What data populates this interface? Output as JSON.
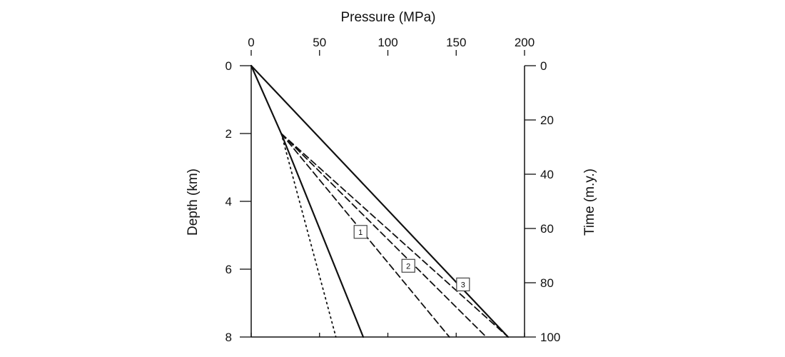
{
  "chart_data": {
    "type": "line",
    "title": "",
    "x_axis": {
      "label": "Pressure (MPa)",
      "position": "top",
      "range": [
        0,
        200
      ],
      "ticks": [
        0,
        50,
        100,
        150,
        200
      ]
    },
    "y_axis_left": {
      "label": "Depth (km)",
      "range": [
        0,
        8
      ],
      "inverted": true,
      "ticks": [
        0,
        2,
        4,
        6,
        8
      ]
    },
    "y_axis_right": {
      "label": "Time (m.y.)",
      "range": [
        0,
        100
      ],
      "inverted": true,
      "ticks": [
        0,
        20,
        40,
        60,
        80,
        100
      ]
    },
    "grid": false,
    "legend": "none",
    "series": [
      {
        "style": "solid",
        "points": [
          [
            0,
            0
          ],
          [
            188,
            8
          ]
        ]
      },
      {
        "style": "solid",
        "points": [
          [
            0,
            0
          ],
          [
            22,
            2
          ],
          [
            82,
            8
          ]
        ]
      },
      {
        "style": "dotted",
        "points": [
          [
            22,
            2
          ],
          [
            62,
            8
          ]
        ]
      },
      {
        "style": "dashed",
        "points": [
          [
            22,
            2
          ],
          [
            145,
            8
          ]
        ]
      },
      {
        "style": "dashed",
        "points": [
          [
            22,
            2
          ],
          [
            172,
            8
          ]
        ]
      },
      {
        "style": "dashed",
        "points": [
          [
            22,
            2
          ],
          [
            188,
            8
          ]
        ]
      }
    ],
    "annotations": [
      {
        "text": "1",
        "x": 80,
        "y": 4.9
      },
      {
        "text": "2",
        "x": 115,
        "y": 5.9
      },
      {
        "text": "3",
        "x": 155,
        "y": 6.45
      }
    ]
  }
}
